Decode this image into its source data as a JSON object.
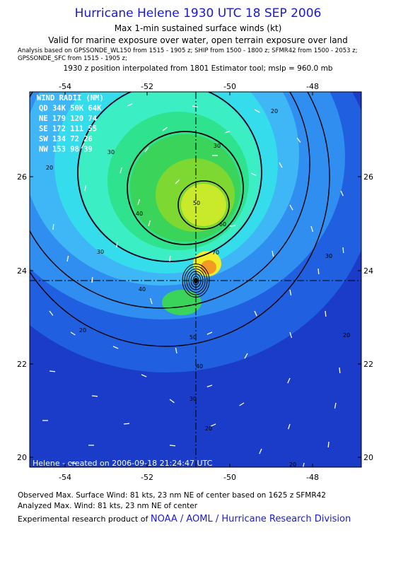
{
  "header": {
    "title": "Hurricane Helene 1930 UTC 18 SEP 2006",
    "subtitle1": "Max 1-min sustained surface winds (kt)",
    "subtitle2": "Valid for marine exposure over water, open terrain exposure over land",
    "analysis_line1": "Analysis based on  GPSSONDE_WL150 from 1515 - 1905 z;  SHIP from 1500 - 1800 z;  SFMR42 from 1500 - 2053 z;",
    "analysis_line2": "GPSSONDE_SFC from 1515 - 1905 z;",
    "position_line": "1930 z position interpolated from 1801 Estimator tool; mslp = 960.0 mb"
  },
  "map": {
    "lon_ticks": [
      "-54",
      "-52",
      "-50",
      "-48"
    ],
    "lat_ticks": [
      "26",
      "24",
      "22",
      "20"
    ],
    "contour_labels": [
      "20",
      "20",
      "20",
      "20",
      "20",
      "20",
      "30",
      "30",
      "30",
      "30",
      "30",
      "40",
      "40",
      "40",
      "50",
      "50",
      "60",
      "70"
    ],
    "credit": "Helene - created on 2006-09-18 21:24:47 UTC",
    "colors": {
      "outer_blue": "#1a3cc8",
      "blue": "#1f5fe0",
      "light_blue": "#2f8ef0",
      "sky": "#3fb6f5",
      "cyan": "#35dcec",
      "aqua": "#3ceec4",
      "teal": "#2fe28e",
      "green": "#3ad45a",
      "lime": "#7ed832",
      "yellow_green": "#c8ea2a",
      "yellow": "#f2ee2a",
      "orange": "#f39a22"
    }
  },
  "wind_radii": {
    "title": "WIND RADII (NM)",
    "header": "QD  34K  50K  64K",
    "rows": [
      {
        "q": "NE",
        "r34": "179",
        "r50": "120",
        "r64": "74"
      },
      {
        "q": "SE",
        "r34": "172",
        "r50": "111",
        "r64": "55"
      },
      {
        "q": "SW",
        "r34": "134",
        "r50": "72",
        "r64": "26"
      },
      {
        "q": "NW",
        "r34": "153",
        "r50": "98",
        "r64": "39"
      }
    ]
  },
  "footer": {
    "observed": "Observed Max. Surface Wind: 81 kts, 23 nm NE of center based on 1625 z SFMR42",
    "analyzed": "Analyzed Max. Wind: 81 kts, 23 nm NE of center",
    "product_prefix": "Experimental research product of",
    "org": "NOAA / AOML / Hurricane Research Division"
  }
}
